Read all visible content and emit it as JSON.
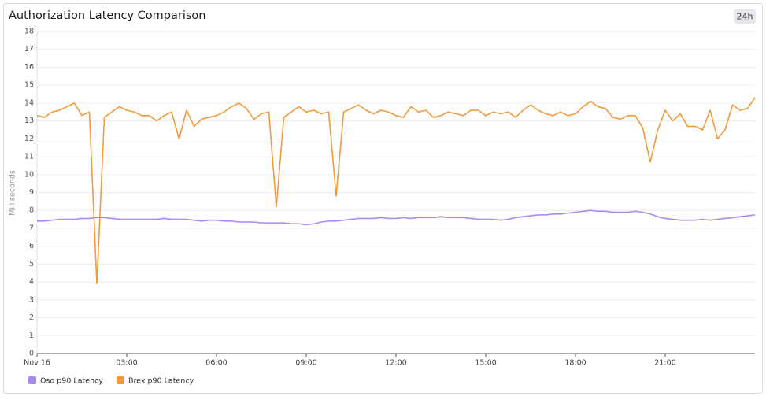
{
  "chart_data": {
    "type": "line",
    "title": "Authorization Latency Comparison",
    "badge": "24h",
    "y_label": "Milliseconds",
    "x": [
      0,
      0.25,
      0.5,
      0.75,
      1,
      1.25,
      1.5,
      1.75,
      2,
      2.25,
      2.5,
      2.75,
      3,
      3.25,
      3.5,
      3.75,
      4,
      4.25,
      4.5,
      4.75,
      5,
      5.25,
      5.5,
      5.75,
      6,
      6.25,
      6.5,
      6.75,
      7,
      7.25,
      7.5,
      7.75,
      8,
      8.25,
      8.5,
      8.75,
      9,
      9.25,
      9.5,
      9.75,
      10,
      10.25,
      10.5,
      10.75,
      11,
      11.25,
      11.5,
      11.75,
      12,
      12.25,
      12.5,
      12.75,
      13,
      13.25,
      13.5,
      13.75,
      14,
      14.25,
      14.5,
      14.75,
      15,
      15.25,
      15.5,
      15.75,
      16,
      16.25,
      16.5,
      16.75,
      17,
      17.25,
      17.5,
      17.75,
      18,
      18.25,
      18.5,
      18.75,
      19,
      19.25,
      19.5,
      19.75,
      20,
      20.25,
      20.5,
      20.75,
      21,
      21.25,
      21.5,
      21.75,
      22,
      22.25,
      22.5,
      22.75,
      23,
      23.25,
      23.5,
      23.75,
      24
    ],
    "xlim": [
      0,
      24
    ],
    "xticks": [
      {
        "value": 0,
        "label": "Nov 16"
      },
      {
        "value": 3,
        "label": "03:00"
      },
      {
        "value": 6,
        "label": "06:00"
      },
      {
        "value": 9,
        "label": "09:00"
      },
      {
        "value": 12,
        "label": "12:00"
      },
      {
        "value": 15,
        "label": "15:00"
      },
      {
        "value": 18,
        "label": "18:00"
      },
      {
        "value": 21,
        "label": "21:00"
      }
    ],
    "ylim": [
      0,
      18
    ],
    "yticks": [
      0,
      1,
      2,
      3,
      4,
      5,
      6,
      7,
      8,
      9,
      10,
      11,
      12,
      13,
      14,
      15,
      16,
      17,
      18
    ],
    "grid": true,
    "legend": "bottom-left",
    "series": [
      {
        "name": "Oso p90 Latency",
        "color": "#a98bf0",
        "values": [
          7.4,
          7.4,
          7.45,
          7.5,
          7.5,
          7.5,
          7.55,
          7.55,
          7.6,
          7.6,
          7.55,
          7.5,
          7.5,
          7.5,
          7.5,
          7.5,
          7.5,
          7.55,
          7.5,
          7.5,
          7.5,
          7.45,
          7.4,
          7.45,
          7.45,
          7.4,
          7.4,
          7.35,
          7.35,
          7.35,
          7.3,
          7.3,
          7.3,
          7.3,
          7.25,
          7.25,
          7.2,
          7.25,
          7.35,
          7.4,
          7.4,
          7.45,
          7.5,
          7.55,
          7.55,
          7.55,
          7.6,
          7.55,
          7.55,
          7.6,
          7.55,
          7.6,
          7.6,
          7.6,
          7.65,
          7.6,
          7.6,
          7.6,
          7.55,
          7.5,
          7.5,
          7.5,
          7.45,
          7.5,
          7.6,
          7.65,
          7.7,
          7.75,
          7.75,
          7.8,
          7.8,
          7.85,
          7.9,
          7.95,
          8.0,
          7.95,
          7.95,
          7.9,
          7.9,
          7.9,
          7.95,
          7.9,
          7.8,
          7.65,
          7.55,
          7.5,
          7.45,
          7.45,
          7.45,
          7.5,
          7.45,
          7.5,
          7.55,
          7.6,
          7.65,
          7.7,
          7.75
        ]
      },
      {
        "name": "Brex p90 Latency",
        "color": "#f39a3d",
        "values": [
          13.3,
          13.2,
          13.5,
          13.6,
          13.8,
          14.0,
          13.3,
          13.5,
          3.9,
          13.2,
          13.5,
          13.8,
          13.6,
          13.5,
          13.3,
          13.3,
          13.0,
          13.3,
          13.5,
          12.0,
          13.6,
          12.7,
          13.1,
          13.2,
          13.3,
          13.5,
          13.8,
          14.0,
          13.7,
          13.1,
          13.4,
          13.5,
          8.2,
          13.2,
          13.5,
          13.8,
          13.5,
          13.6,
          13.4,
          13.5,
          8.8,
          13.5,
          13.7,
          13.9,
          13.6,
          13.4,
          13.6,
          13.5,
          13.3,
          13.2,
          13.8,
          13.5,
          13.6,
          13.2,
          13.3,
          13.5,
          13.4,
          13.3,
          13.6,
          13.6,
          13.3,
          13.5,
          13.4,
          13.5,
          13.2,
          13.6,
          13.9,
          13.6,
          13.4,
          13.3,
          13.5,
          13.3,
          13.4,
          13.8,
          14.1,
          13.8,
          13.7,
          13.2,
          13.1,
          13.3,
          13.3,
          12.6,
          10.7,
          12.5,
          13.6,
          13.0,
          13.4,
          12.7,
          12.7,
          12.5,
          13.6,
          12.0,
          12.5,
          13.9,
          13.6,
          13.7,
          14.3
        ]
      }
    ]
  }
}
